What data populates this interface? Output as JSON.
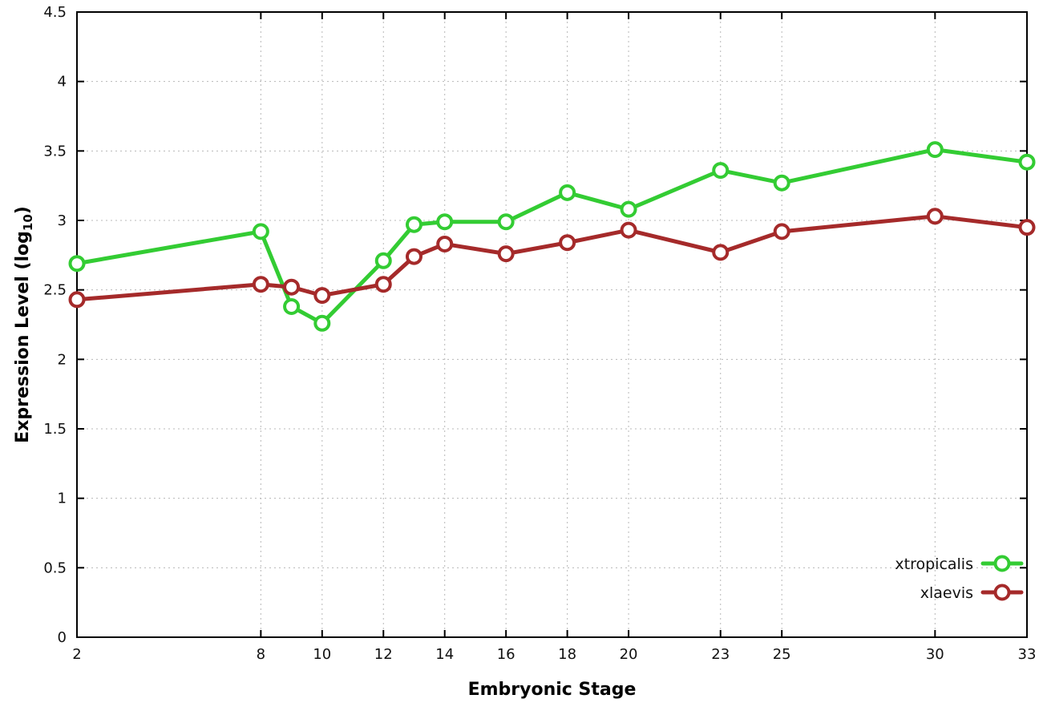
{
  "chart_data": {
    "type": "line",
    "title": "",
    "xlabel": "Embryonic Stage",
    "ylabel": "Expression Level (log10)",
    "ylabel_parts": {
      "base": "Expression Level (log",
      "sub": "10",
      "close": ")"
    },
    "xlim": [
      2,
      33
    ],
    "ylim": [
      0,
      4.5
    ],
    "xticks": [
      2,
      8,
      10,
      12,
      14,
      16,
      18,
      20,
      23,
      25,
      30,
      33
    ],
    "yticks": [
      0,
      0.5,
      1,
      1.5,
      2,
      2.5,
      3,
      3.5,
      4,
      4.5
    ],
    "ytick_labels": [
      "0",
      "0.5",
      "1",
      "1.5",
      "2",
      "2.5",
      "3",
      "3.5",
      "4",
      "4.5"
    ],
    "grid": true,
    "legend_position": "bottom-right",
    "x": [
      2,
      8,
      9,
      10,
      12,
      13,
      14,
      16,
      18,
      20,
      23,
      25,
      30,
      33
    ],
    "series": [
      {
        "name": "xtropicalis",
        "color": "#33cc33",
        "values": [
          2.69,
          2.92,
          2.38,
          2.26,
          2.71,
          2.97,
          2.99,
          2.99,
          3.2,
          3.08,
          3.36,
          3.27,
          3.51,
          3.42
        ]
      },
      {
        "name": "xlaevis",
        "color": "#a52a2a",
        "values": [
          2.43,
          2.54,
          2.52,
          2.46,
          2.54,
          2.74,
          2.83,
          2.76,
          2.84,
          2.93,
          2.77,
          2.92,
          3.03,
          2.95
        ]
      }
    ]
  }
}
